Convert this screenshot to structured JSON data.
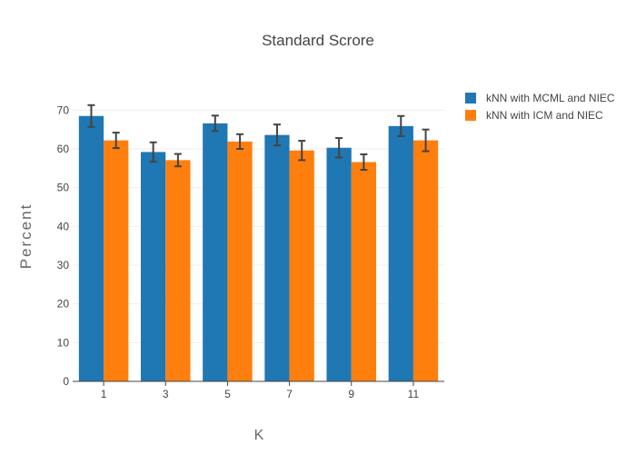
{
  "chart_data": {
    "type": "bar",
    "title": "Standard Scrore",
    "xlabel": "K",
    "ylabel": "Percent",
    "categories": [
      "1",
      "3",
      "5",
      "7",
      "9",
      "11"
    ],
    "ylim": [
      0,
      75
    ],
    "yticks": [
      "0",
      "10",
      "20",
      "30",
      "40",
      "50",
      "60",
      "70"
    ],
    "grid": true,
    "legend_position": "top-right",
    "series": [
      {
        "name": "kNN with MCML and NIEC",
        "color": "#1f77b4",
        "values": [
          68.5,
          59.2,
          66.6,
          63.6,
          60.3,
          65.9
        ],
        "errors": [
          2.8,
          2.5,
          2.0,
          2.7,
          2.5,
          2.6
        ]
      },
      {
        "name": "kNN with ICM and NIEC",
        "color": "#ff7f0e",
        "values": [
          62.2,
          57.1,
          61.9,
          59.6,
          56.6,
          62.2
        ],
        "errors": [
          2.0,
          1.6,
          1.9,
          2.5,
          2.0,
          2.8
        ]
      }
    ]
  }
}
